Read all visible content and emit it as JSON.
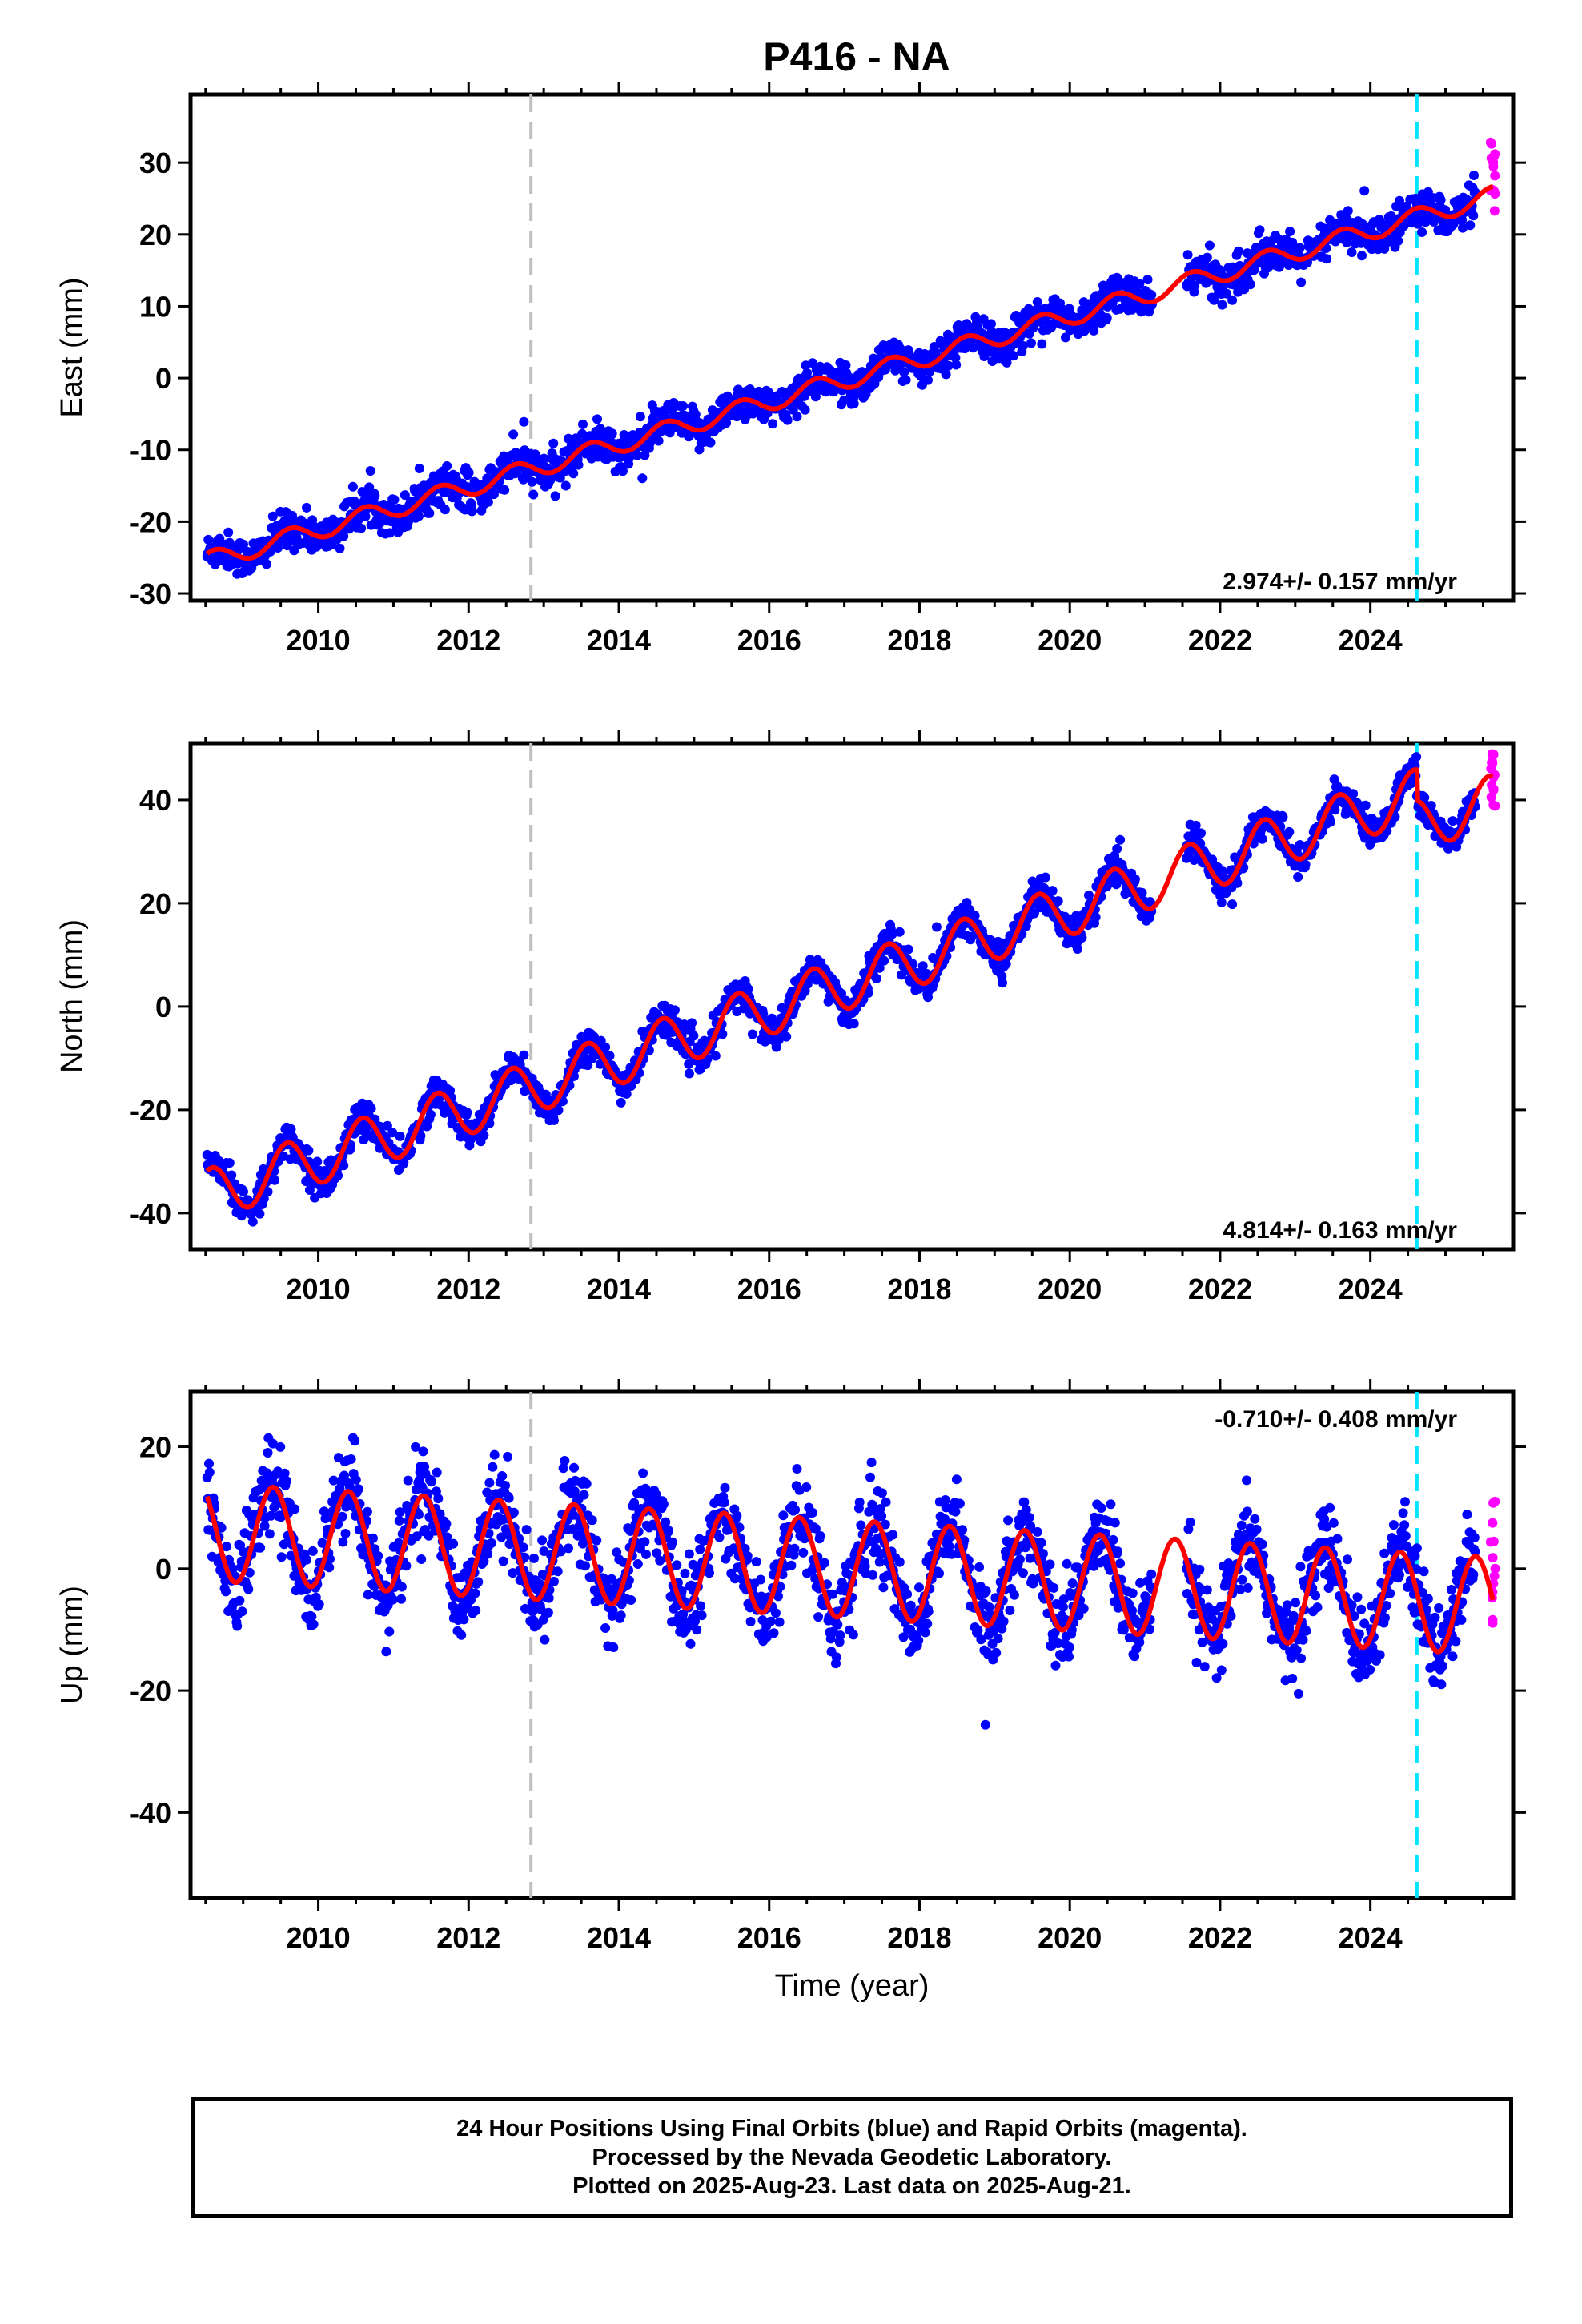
{
  "title": "P416 - NA",
  "x_axis_title": "Time (year)",
  "footer": {
    "line1": "24 Hour Positions Using Final Orbits (blue) and Rapid Orbits (magenta).",
    "line2": "Processed by the Nevada Geodetic Laboratory.",
    "line3": "Plotted on 2025-Aug-23. Last data on 2025-Aug-21."
  },
  "colors": {
    "final_orbits": "#0000ff",
    "rapid_orbits": "#ff00ff",
    "model_fit": "#ff0000",
    "antenna_change_line": "#c0c0c0",
    "equipment_change_line": "#00e5ff"
  },
  "chart_data": [
    {
      "type": "scatter",
      "ylabel": "East (mm)",
      "xlim": [
        2008.3,
        2025.9
      ],
      "ylim": [
        -31,
        39.5
      ],
      "yticks": [
        -30,
        -20,
        -10,
        0,
        10,
        20,
        30
      ],
      "xticks": [
        2010,
        2012,
        2014,
        2016,
        2018,
        2020,
        2022,
        2024
      ],
      "rate_label": "2.974+/- 0.157 mm/yr",
      "rate_position": "bottom-right",
      "start": 2008.52,
      "end_final": 2025.4,
      "end_rapid": 2025.63,
      "gap": [
        2021.1,
        2021.55
      ],
      "model": {
        "intercept": -25.5,
        "slope": 2.974,
        "amplitude": 1.3,
        "phase_year": 2008.62,
        "noise": 1.3
      },
      "offsets": [
        [
          2024.62,
          0
        ]
      ],
      "vlines": [
        {
          "x": 2012.83,
          "kind": "antenna_change"
        },
        {
          "x": 2024.62,
          "kind": "equipment_change"
        }
      ]
    },
    {
      "type": "scatter",
      "ylabel": "North (mm)",
      "xlim": [
        2008.3,
        2025.9
      ],
      "ylim": [
        -47,
        51
      ],
      "yticks": [
        -40,
        -20,
        0,
        20,
        40
      ],
      "xticks": [
        2010,
        2012,
        2014,
        2016,
        2018,
        2020,
        2022,
        2024
      ],
      "rate_label": "4.814+/- 0.163 mm/yr",
      "rate_position": "bottom-right",
      "start": 2008.52,
      "end_final": 2025.4,
      "end_rapid": 2025.63,
      "gap": [
        2021.1,
        2021.55
      ],
      "model": {
        "intercept": -36.5,
        "slope": 4.814,
        "amplitude": 5.0,
        "phase_year": 2008.58,
        "noise": 1.6
      },
      "offsets": [
        [
          2024.62,
          -6
        ]
      ],
      "vlines": [
        {
          "x": 2012.83,
          "kind": "antenna_change"
        },
        {
          "x": 2024.62,
          "kind": "equipment_change"
        }
      ]
    },
    {
      "type": "scatter",
      "ylabel": "Up (mm)",
      "xlim": [
        2008.3,
        2025.9
      ],
      "ylim": [
        -54,
        29
      ],
      "yticks": [
        -40,
        -20,
        0,
        20
      ],
      "xticks": [
        2010,
        2012,
        2014,
        2016,
        2018,
        2020,
        2022,
        2024
      ],
      "rate_label": "-0.710+/- 0.408 mm/yr",
      "rate_position": "top-right",
      "start": 2008.52,
      "end_final": 2025.4,
      "end_rapid": 2025.63,
      "gap": [
        2021.1,
        2021.55
      ],
      "model": {
        "intercept": 6.0,
        "slope": -0.71,
        "amplitude": 8.0,
        "phase_year": 2008.4,
        "noise": 3.4
      },
      "offsets": [
        [
          2024.62,
          0
        ]
      ],
      "vlines": [
        {
          "x": 2012.83,
          "kind": "antenna_change"
        },
        {
          "x": 2024.62,
          "kind": "equipment_change"
        }
      ]
    }
  ]
}
